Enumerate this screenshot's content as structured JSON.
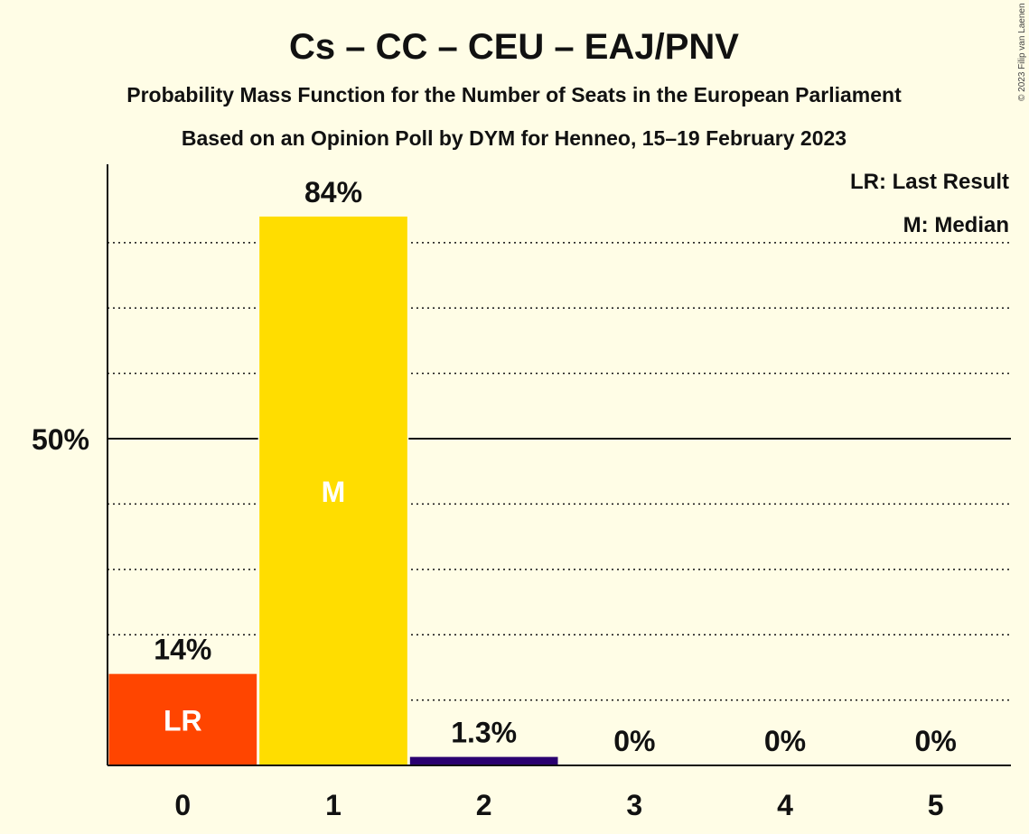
{
  "title": "Cs – CC – CEU – EAJ/PNV",
  "subtitle1": "Probability Mass Function for the Number of Seats in the European Parliament",
  "subtitle2": "Based on an Opinion Poll by DYM for Henneo, 15–19 February 2023",
  "copyright": "© 2023 Filip van Laenen",
  "legend": {
    "lr": "LR: Last Result",
    "m": "M: Median"
  },
  "chart_data": {
    "type": "bar",
    "categories": [
      "0",
      "1",
      "2",
      "3",
      "4",
      "5"
    ],
    "values": [
      14,
      84,
      1.3,
      0,
      0,
      0
    ],
    "value_labels": [
      "14%",
      "84%",
      "1.3%",
      "0%",
      "0%",
      "0%"
    ],
    "bar_colors": [
      "#FF4500",
      "#FFDD00",
      "#2A0070",
      "#2A0070",
      "#2A0070",
      "#2A0070"
    ],
    "inside_labels": [
      "LR",
      "M",
      "",
      "",
      "",
      ""
    ],
    "ylim": [
      0,
      92
    ],
    "ytick_values": [
      50
    ],
    "ytick_labels": [
      "50%"
    ],
    "dotted_grid_values": [
      10,
      20,
      30,
      40,
      60,
      70,
      80
    ],
    "grid": true,
    "legend_position": "top-right"
  }
}
